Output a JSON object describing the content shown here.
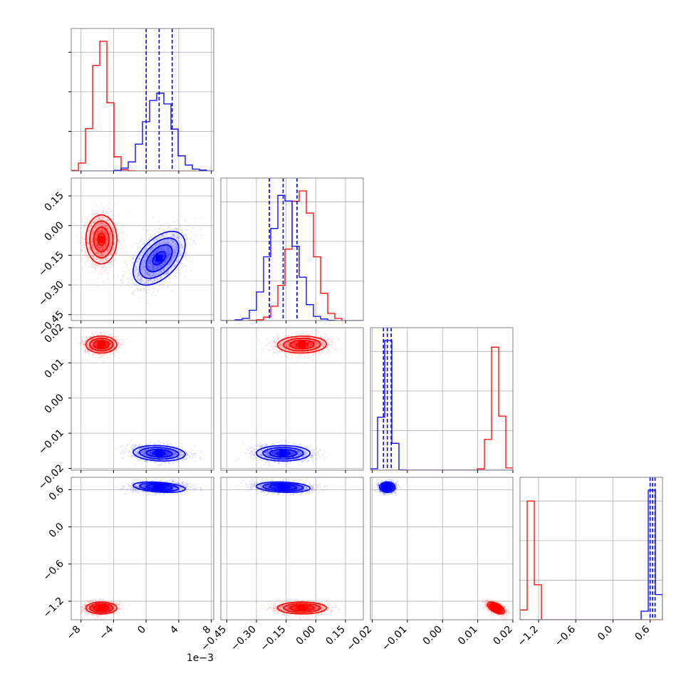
{
  "chart_data": {
    "type": "corner",
    "title": "",
    "grid": true,
    "colors": {
      "series_red": "#ff0000",
      "series_blue": "#0000ff",
      "frame": "#808080",
      "grid": "#b0b0b0"
    },
    "parameters": [
      {
        "range": [
          -9.2,
          8.3
        ],
        "ticks": [
          -8,
          -4,
          0,
          4,
          8
        ],
        "tick_labels": [
          "−8",
          "−4",
          "0",
          "4",
          "8"
        ],
        "offset_text": "1e−3"
      },
      {
        "range": [
          -0.48,
          0.24
        ],
        "ticks": [
          -0.45,
          -0.3,
          -0.15,
          0.0,
          0.15
        ],
        "tick_labels": [
          "−0.45",
          "−0.30",
          "−0.15",
          "0.00",
          "0.15"
        ],
        "offset_text": ""
      },
      {
        "range": [
          -0.0205,
          0.02
        ],
        "ticks": [
          -0.02,
          -0.01,
          0.0,
          0.01,
          0.02
        ],
        "tick_labels": [
          "−0.02",
          "−0.01",
          "0.00",
          "0.01",
          "0.02"
        ],
        "offset_text": ""
      },
      {
        "range": [
          -1.5,
          0.8
        ],
        "ticks": [
          -1.2,
          -0.6,
          0.0,
          0.6
        ],
        "tick_labels": [
          "−1.2",
          "−0.6",
          "0.0",
          "0.6"
        ],
        "offset_text": ""
      }
    ],
    "series": [
      {
        "color": "#ff0000",
        "means": [
          -5.5,
          -0.07,
          0.0152,
          -1.31
        ],
        "sds": [
          0.95,
          0.062,
          0.0012,
          0.048
        ],
        "correlations": [
          [
            0,
            1,
            0.0
          ],
          [
            2,
            3,
            -0.55
          ],
          [
            0,
            2,
            0.0
          ],
          [
            1,
            2,
            0.05
          ],
          [
            0,
            3,
            0.0
          ],
          [
            1,
            3,
            0.0
          ]
        ],
        "quantile_lines": []
      },
      {
        "color": "#0000ff",
        "means": [
          1.6,
          -0.165,
          -0.0157,
          0.64
        ],
        "sds": [
          1.6,
          0.068,
          0.0011,
          0.042
        ],
        "correlations": [
          [
            0,
            1,
            0.5
          ],
          [
            0,
            2,
            -0.15
          ],
          [
            0,
            3,
            -0.35
          ],
          [
            1,
            2,
            0.0
          ],
          [
            1,
            3,
            -0.2
          ],
          [
            2,
            3,
            0.0
          ]
        ],
        "quantile_lines": [
          [
            0.0,
            1.6,
            3.2
          ],
          [
            -0.235,
            -0.165,
            -0.095
          ],
          [
            -0.0168,
            -0.0157,
            -0.0146
          ],
          [
            0.6,
            0.64,
            0.68
          ]
        ]
      }
    ]
  }
}
